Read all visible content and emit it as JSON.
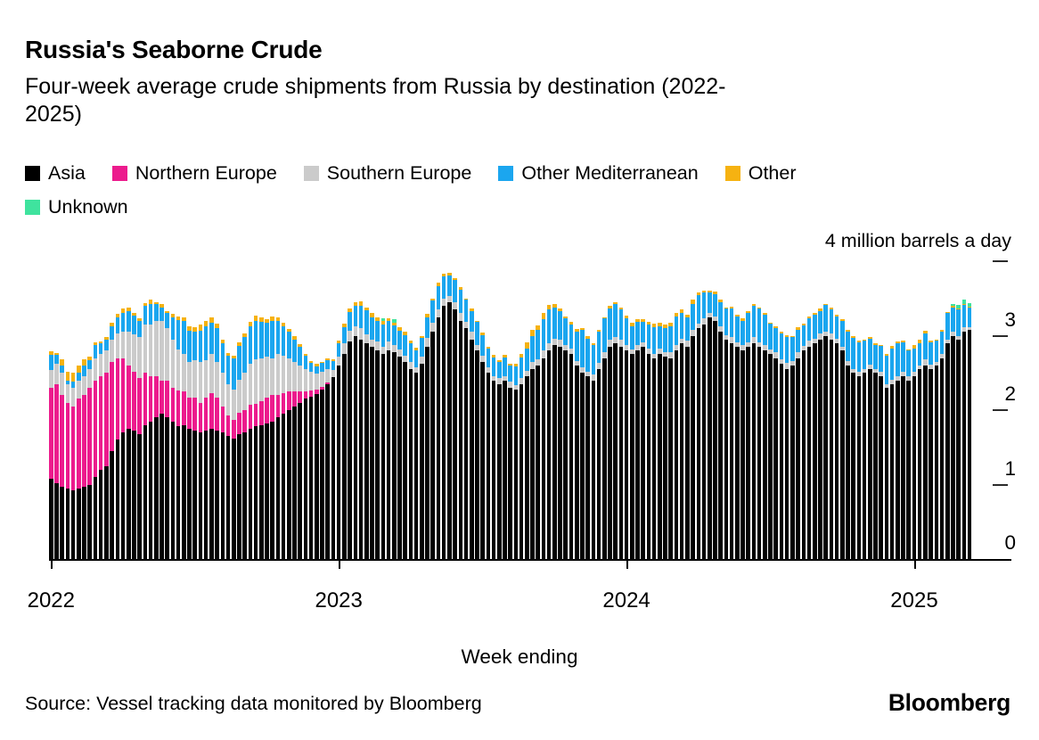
{
  "header": {
    "title": "Russia's Seaborne Crude",
    "subtitle": "Four-week average crude shipments from Russia by destination (2022-2025)"
  },
  "footer": {
    "source": "Source: Vessel tracking data monitored by Bloomberg",
    "logo": "Bloomberg"
  },
  "chart_data": {
    "type": "bar",
    "stacked": true,
    "title": "Russia's Seaborne Crude",
    "subtitle": "Four-week average crude shipments from Russia by destination (2022-2025)",
    "xlabel": "Week ending",
    "unit_label": "4 million barrels a day",
    "ylim": [
      0,
      4
    ],
    "y_tick_labels": [
      "0",
      "1",
      "2",
      "3"
    ],
    "y_dash_values": [
      1,
      2,
      3,
      4
    ],
    "grid": false,
    "legend_position": "top",
    "weeks": 167,
    "x_tick_labels": [
      "2022",
      "2023",
      "2024",
      "2025"
    ],
    "x_tick_week_indices": [
      0,
      52,
      104,
      156
    ],
    "series": [
      {
        "name": "Asia",
        "color": "#000000",
        "values": [
          1.08,
          1.02,
          0.97,
          0.95,
          0.92,
          0.95,
          0.97,
          1.0,
          1.1,
          1.2,
          1.25,
          1.45,
          1.6,
          1.7,
          1.75,
          1.72,
          1.68,
          1.8,
          1.85,
          1.9,
          1.95,
          1.9,
          1.85,
          1.78,
          1.8,
          1.75,
          1.72,
          1.7,
          1.72,
          1.75,
          1.72,
          1.7,
          1.65,
          1.62,
          1.68,
          1.7,
          1.75,
          1.78,
          1.8,
          1.82,
          1.85,
          1.9,
          1.95,
          2.0,
          2.05,
          2.1,
          2.15,
          2.18,
          2.22,
          2.28,
          2.35,
          2.44,
          2.6,
          2.75,
          2.92,
          3.0,
          2.95,
          2.9,
          2.85,
          2.8,
          2.75,
          2.8,
          2.78,
          2.72,
          2.65,
          2.55,
          2.5,
          2.62,
          2.85,
          3.05,
          3.25,
          3.4,
          3.45,
          3.35,
          3.2,
          3.1,
          2.95,
          2.8,
          2.65,
          2.5,
          2.4,
          2.35,
          2.4,
          2.3,
          2.28,
          2.35,
          2.45,
          2.55,
          2.6,
          2.7,
          2.8,
          2.88,
          2.85,
          2.8,
          2.75,
          2.6,
          2.5,
          2.45,
          2.4,
          2.55,
          2.7,
          2.85,
          2.9,
          2.85,
          2.8,
          2.75,
          2.8,
          2.85,
          2.75,
          2.7,
          2.75,
          2.72,
          2.7,
          2.8,
          2.9,
          2.85,
          3.0,
          3.1,
          3.15,
          3.25,
          3.2,
          3.05,
          2.95,
          2.9,
          2.85,
          2.8,
          2.85,
          2.9,
          2.85,
          2.8,
          2.75,
          2.7,
          2.62,
          2.55,
          2.6,
          2.7,
          2.8,
          2.85,
          2.9,
          2.95,
          3.0,
          2.95,
          2.9,
          2.8,
          2.6,
          2.5,
          2.45,
          2.5,
          2.55,
          2.5,
          2.45,
          2.3,
          2.35,
          2.4,
          2.45,
          2.4,
          2.45,
          2.55,
          2.6,
          2.55,
          2.6,
          2.7,
          2.9,
          3.0,
          2.95,
          3.05,
          3.08
        ]
      },
      {
        "name": "Northern Europe",
        "color": "#EC1B8D",
        "values": [
          1.22,
          1.33,
          1.23,
          1.15,
          1.13,
          1.2,
          1.23,
          1.3,
          1.3,
          1.25,
          1.25,
          1.2,
          1.1,
          1.0,
          0.85,
          0.8,
          0.75,
          0.7,
          0.6,
          0.55,
          0.45,
          0.5,
          0.45,
          0.48,
          0.45,
          0.42,
          0.45,
          0.4,
          0.45,
          0.48,
          0.45,
          0.35,
          0.28,
          0.25,
          0.28,
          0.3,
          0.32,
          0.3,
          0.32,
          0.35,
          0.35,
          0.3,
          0.28,
          0.25,
          0.2,
          0.15,
          0.1,
          0.08,
          0.05,
          0.03,
          0.02,
          0,
          0,
          0,
          0,
          0,
          0,
          0,
          0,
          0,
          0,
          0,
          0,
          0,
          0,
          0,
          0,
          0,
          0,
          0,
          0,
          0,
          0,
          0,
          0,
          0,
          0,
          0,
          0,
          0,
          0,
          0,
          0,
          0,
          0,
          0,
          0,
          0,
          0,
          0,
          0,
          0,
          0,
          0,
          0,
          0,
          0,
          0,
          0,
          0,
          0,
          0,
          0,
          0,
          0,
          0,
          0,
          0,
          0,
          0,
          0,
          0,
          0,
          0,
          0,
          0,
          0,
          0,
          0,
          0,
          0,
          0,
          0,
          0,
          0,
          0,
          0,
          0,
          0,
          0,
          0,
          0,
          0,
          0,
          0,
          0,
          0,
          0,
          0,
          0,
          0,
          0,
          0,
          0,
          0,
          0,
          0,
          0,
          0,
          0,
          0,
          0,
          0,
          0,
          0,
          0,
          0,
          0,
          0,
          0,
          0,
          0,
          0,
          0,
          0,
          0,
          0
        ]
      },
      {
        "name": "Southern Europe",
        "color": "#CBCBCB",
        "values": [
          0.24,
          0.27,
          0.3,
          0.25,
          0.25,
          0.25,
          0.25,
          0.25,
          0.3,
          0.3,
          0.3,
          0.3,
          0.33,
          0.35,
          0.45,
          0.5,
          0.55,
          0.65,
          0.7,
          0.75,
          0.8,
          0.7,
          0.65,
          0.55,
          0.5,
          0.48,
          0.5,
          0.55,
          0.5,
          0.52,
          0.48,
          0.45,
          0.42,
          0.4,
          0.45,
          0.5,
          0.55,
          0.6,
          0.58,
          0.55,
          0.5,
          0.55,
          0.5,
          0.45,
          0.4,
          0.35,
          0.3,
          0.25,
          0.22,
          0.2,
          0.18,
          0.1,
          0.12,
          0.15,
          0.15,
          0.12,
          0.15,
          0.12,
          0.1,
          0.12,
          0.1,
          0.12,
          0.1,
          0.1,
          0.08,
          0.1,
          0.08,
          0.1,
          0.12,
          0.12,
          0.1,
          0.1,
          0.08,
          0.1,
          0.1,
          0.08,
          0.1,
          0.08,
          0.08,
          0.08,
          0.06,
          0.08,
          0.06,
          0.08,
          0.06,
          0.08,
          0.08,
          0.1,
          0.08,
          0.1,
          0.1,
          0.08,
          0.1,
          0.08,
          0.08,
          0.06,
          0.08,
          0.06,
          0.08,
          0.08,
          0.08,
          0.1,
          0.08,
          0.1,
          0.08,
          0.06,
          0.08,
          0.06,
          0.08,
          0.06,
          0.08,
          0.06,
          0.08,
          0.08,
          0.06,
          0.08,
          0.08,
          0.06,
          0.08,
          0.05,
          0.06,
          0.08,
          0.06,
          0.08,
          0.06,
          0.08,
          0.06,
          0.08,
          0.06,
          0.08,
          0.06,
          0.08,
          0.06,
          0.08,
          0.06,
          0.08,
          0.06,
          0.08,
          0.06,
          0.08,
          0.06,
          0.08,
          0.06,
          0.05,
          0.06,
          0.05,
          0.06,
          0.05,
          0.06,
          0.05,
          0.06,
          0.05,
          0.06,
          0.05,
          0.06,
          0.05,
          0.06,
          0.05,
          0.08,
          0.06,
          0.05,
          0.06,
          0.05,
          0.06,
          0.05,
          0.06,
          0.03
        ]
      },
      {
        "name": "Other Mediterranean",
        "color": "#1BA6EF",
        "values": [
          0.2,
          0.12,
          0.1,
          0.05,
          0.08,
          0.1,
          0.15,
          0.12,
          0.18,
          0.15,
          0.15,
          0.18,
          0.22,
          0.25,
          0.28,
          0.25,
          0.22,
          0.25,
          0.28,
          0.22,
          0.18,
          0.2,
          0.3,
          0.4,
          0.45,
          0.42,
          0.38,
          0.42,
          0.45,
          0.42,
          0.45,
          0.4,
          0.38,
          0.42,
          0.45,
          0.48,
          0.5,
          0.52,
          0.48,
          0.45,
          0.5,
          0.45,
          0.4,
          0.35,
          0.3,
          0.25,
          0.18,
          0.12,
          0.1,
          0.12,
          0.12,
          0.12,
          0.18,
          0.22,
          0.25,
          0.28,
          0.3,
          0.32,
          0.3,
          0.28,
          0.3,
          0.28,
          0.26,
          0.25,
          0.28,
          0.25,
          0.22,
          0.25,
          0.28,
          0.3,
          0.32,
          0.3,
          0.28,
          0.3,
          0.32,
          0.3,
          0.28,
          0.3,
          0.28,
          0.25,
          0.25,
          0.22,
          0.25,
          0.22,
          0.25,
          0.28,
          0.3,
          0.35,
          0.4,
          0.42,
          0.45,
          0.42,
          0.38,
          0.35,
          0.32,
          0.4,
          0.5,
          0.45,
          0.4,
          0.42,
          0.45,
          0.42,
          0.45,
          0.4,
          0.35,
          0.32,
          0.3,
          0.28,
          0.32,
          0.35,
          0.3,
          0.32,
          0.35,
          0.38,
          0.35,
          0.32,
          0.35,
          0.38,
          0.35,
          0.28,
          0.3,
          0.32,
          0.35,
          0.38,
          0.35,
          0.32,
          0.4,
          0.42,
          0.45,
          0.4,
          0.35,
          0.32,
          0.35,
          0.35,
          0.32,
          0.3,
          0.28,
          0.3,
          0.32,
          0.3,
          0.35,
          0.32,
          0.3,
          0.35,
          0.4,
          0.42,
          0.4,
          0.38,
          0.35,
          0.32,
          0.35,
          0.38,
          0.42,
          0.45,
          0.4,
          0.35,
          0.32,
          0.3,
          0.35,
          0.3,
          0.28,
          0.3,
          0.35,
          0.32,
          0.35,
          0.3,
          0.27
        ]
      },
      {
        "name": "Other",
        "color": "#F6B211",
        "values": [
          0.05,
          0.03,
          0.08,
          0.12,
          0.12,
          0.1,
          0.08,
          0.05,
          0.03,
          0.02,
          0.03,
          0.05,
          0.05,
          0.06,
          0.05,
          0.04,
          0.03,
          0.04,
          0.05,
          0.03,
          0.04,
          0.03,
          0.04,
          0.05,
          0.05,
          0.06,
          0.07,
          0.08,
          0.08,
          0.08,
          0.06,
          0.05,
          0.04,
          0.04,
          0.05,
          0.05,
          0.06,
          0.07,
          0.06,
          0.05,
          0.06,
          0.05,
          0.05,
          0.04,
          0.04,
          0.04,
          0.03,
          0.03,
          0.03,
          0.02,
          0.03,
          0.02,
          0.03,
          0.04,
          0.05,
          0.05,
          0.06,
          0.04,
          0.05,
          0.04,
          0.05,
          0.03,
          0.04,
          0.05,
          0.04,
          0.03,
          0.04,
          0.03,
          0.04,
          0.03,
          0.04,
          0.03,
          0.03,
          0.02,
          0.03,
          0.02,
          0.03,
          0.02,
          0.03,
          0.02,
          0.03,
          0.02,
          0.03,
          0.02,
          0.03,
          0.05,
          0.08,
          0.08,
          0.06,
          0.08,
          0.06,
          0.05,
          0.04,
          0.03,
          0.04,
          0.03,
          0.02,
          0.03,
          0.02,
          0.03,
          0.02,
          0.03,
          0.02,
          0.03,
          0.04,
          0.05,
          0.04,
          0.03,
          0.04,
          0.05,
          0.04,
          0.05,
          0.04,
          0.05,
          0.04,
          0.03,
          0.05,
          0.04,
          0.03,
          0.02,
          0.03,
          0.03,
          0.02,
          0.03,
          0.02,
          0.03,
          0.02,
          0.03,
          0.02,
          0.03,
          0.02,
          0.03,
          0.02,
          0.03,
          0.02,
          0.03,
          0.02,
          0.03,
          0.02,
          0.03,
          0.02,
          0.03,
          0.02,
          0.02,
          0.02,
          0.02,
          0.03,
          0.02,
          0.02,
          0.03,
          0.02,
          0.02,
          0.03,
          0.02,
          0.03,
          0.02,
          0.04,
          0.05,
          0.04,
          0.03,
          0.02,
          0.02,
          0.02,
          0.02,
          0.02,
          0.02,
          0.01
        ]
      },
      {
        "name": "Unknown",
        "color": "#3FE39E",
        "values": [
          0,
          0,
          0,
          0,
          0,
          0,
          0,
          0,
          0,
          0,
          0,
          0,
          0,
          0,
          0,
          0,
          0,
          0,
          0,
          0,
          0,
          0,
          0,
          0,
          0,
          0,
          0,
          0,
          0,
          0,
          0,
          0,
          0,
          0,
          0,
          0,
          0,
          0,
          0,
          0,
          0,
          0,
          0,
          0,
          0,
          0,
          0,
          0,
          0,
          0,
          0,
          0,
          0,
          0,
          0,
          0,
          0,
          0,
          0,
          0,
          0.04,
          0,
          0.04,
          0,
          0,
          0,
          0,
          0,
          0,
          0,
          0,
          0,
          0,
          0,
          0,
          0,
          0,
          0,
          0,
          0,
          0,
          0,
          0,
          0,
          0,
          0,
          0,
          0,
          0,
          0,
          0,
          0,
          0,
          0,
          0,
          0,
          0,
          0,
          0,
          0,
          0,
          0,
          0,
          0,
          0,
          0,
          0,
          0,
          0,
          0,
          0,
          0,
          0,
          0,
          0,
          0,
          0,
          0,
          0,
          0,
          0,
          0,
          0,
          0,
          0,
          0,
          0,
          0,
          0,
          0,
          0,
          0,
          0,
          0,
          0,
          0,
          0,
          0,
          0,
          0,
          0,
          0,
          0,
          0,
          0,
          0,
          0,
          0,
          0,
          0,
          0,
          0,
          0,
          0,
          0,
          0,
          0,
          0,
          0,
          0,
          0,
          0,
          0,
          0.03,
          0.04,
          0.05,
          0.05
        ]
      }
    ]
  }
}
